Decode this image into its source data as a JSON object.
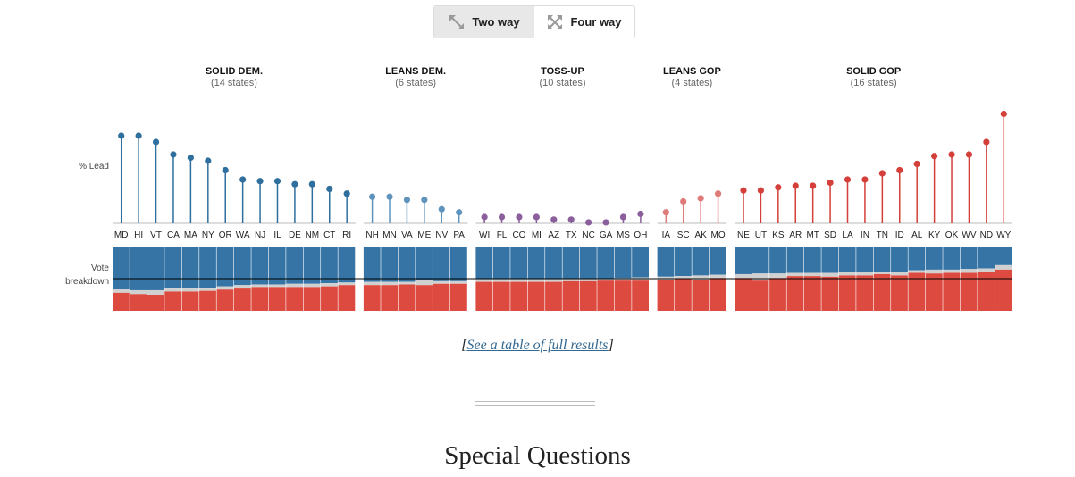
{
  "toggle": {
    "two_way_label": "Two way",
    "four_way_label": "Four way",
    "active": "two_way"
  },
  "colors": {
    "dem_solid": "#2f6f9e",
    "dem_lean": "#5e93bd",
    "tossup": "#8b5f9b",
    "gop_lean": "#de7a77",
    "gop_solid": "#d43f3a",
    "vote_blue": "#3574a5",
    "vote_gray": "#d0d0d0",
    "vote_red": "#dd4b40"
  },
  "link": {
    "open": "[",
    "text": "See a table of full results",
    "close": "]"
  },
  "section_title": "Special Questions",
  "chart_data": {
    "type": "scatter",
    "title": "",
    "ylabel": "% Lead",
    "vote_label": "Vote breakdown",
    "groups": [
      {
        "name": "SOLID DEM.",
        "count": "(14 states)",
        "side": "dem",
        "tier": "solid",
        "states": [
          "MD",
          "HI",
          "VT",
          "CA",
          "MA",
          "NY",
          "OR",
          "WA",
          "NJ",
          "IL",
          "DE",
          "NM",
          "CT",
          "RI"
        ],
        "lead": [
          28,
          28,
          26,
          22,
          21,
          20,
          17,
          14,
          13.5,
          13.5,
          12.5,
          12.5,
          11,
          9.5
        ],
        "dem_share": [
          66,
          68,
          68,
          64,
          64,
          64,
          62,
          60,
          59,
          59,
          58,
          58,
          57,
          56
        ],
        "other": [
          6,
          6,
          7,
          6,
          6,
          5,
          5,
          4,
          4,
          4,
          5,
          5,
          5,
          4
        ]
      },
      {
        "name": "LEANS DEM.",
        "count": "(6 states)",
        "side": "dem",
        "tier": "lean",
        "states": [
          "NH",
          "MN",
          "VA",
          "ME",
          "NV",
          "PA"
        ],
        "lead": [
          8.5,
          8.5,
          7.5,
          7.5,
          4.5,
          3.5
        ],
        "dem_share": [
          55,
          55,
          55,
          53,
          54,
          54
        ],
        "other": [
          5,
          5,
          4,
          7,
          4,
          4
        ]
      },
      {
        "name": "TOSS-UP",
        "count": "(10 states)",
        "side": "tossup",
        "tier": "tossup",
        "states": [
          "WI",
          "FL",
          "CO",
          "MI",
          "AZ",
          "TX",
          "NC",
          "GA",
          "MS",
          "OH"
        ],
        "lead": [
          2,
          2,
          2,
          2,
          1.2,
          1.2,
          0.3,
          0.3,
          2,
          3
        ],
        "dem_share": [
          51,
          51,
          51,
          51,
          51,
          50,
          50,
          50,
          49,
          48
        ],
        "other": [
          4,
          4,
          4,
          4,
          4,
          4,
          4,
          3,
          4,
          5
        ]
      },
      {
        "name": "LEANS GOP",
        "count": "(4 states)",
        "side": "gop",
        "tier": "lean",
        "states": [
          "IA",
          "SC",
          "AK",
          "MO"
        ],
        "lead": [
          3.5,
          7,
          8,
          9.5
        ],
        "dem_share": [
          47,
          46,
          45,
          44
        ],
        "other": [
          5,
          4,
          7,
          5
        ]
      },
      {
        "name": "SOLID GOP",
        "count": "(16 states)",
        "side": "gop",
        "tier": "solid",
        "states": [
          "NE",
          "UT",
          "KS",
          "AR",
          "MT",
          "SD",
          "LA",
          "IN",
          "TN",
          "ID",
          "AL",
          "KY",
          "OK",
          "WV",
          "ND",
          "WY"
        ],
        "lead": [
          10.5,
          10.5,
          11.5,
          12,
          12,
          13,
          14,
          14,
          16,
          17,
          19,
          21.5,
          22,
          22,
          26,
          35
        ],
        "dem_share": [
          43,
          42,
          42,
          41,
          41,
          41,
          40,
          40,
          39,
          39,
          37,
          36,
          36,
          35,
          34,
          29
        ],
        "other": [
          6,
          11,
          7,
          5,
          5,
          6,
          5,
          5,
          4,
          6,
          4,
          6,
          5,
          6,
          6,
          7
        ]
      }
    ]
  }
}
